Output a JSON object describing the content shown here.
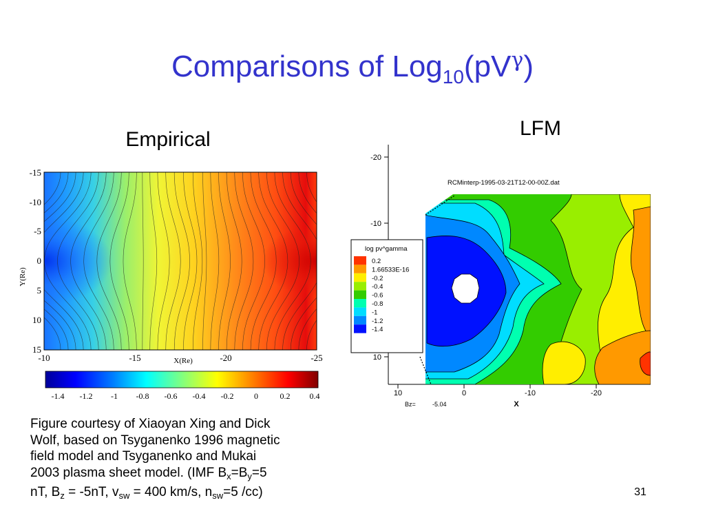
{
  "title": {
    "prefix": "Comparisons of Log",
    "subscript": "10",
    "mid": "(pV",
    "greek": "γ",
    "suffix": ")"
  },
  "panels": {
    "empirical": {
      "heading": "Empirical"
    },
    "lfm": {
      "heading": "LFM"
    }
  },
  "caption": {
    "line1": "Figure courtesy of Xiaoyan Xing and Dick",
    "line2": "Wolf, based on Tsyganenko 1996 magnetic",
    "line3": "field model and Tsyganenko and Mukai",
    "line4_pre": "2003 plasma sheet model. (IMF B",
    "bx_sub": "x",
    "eq1": "=B",
    "by_sub": "y",
    "eq2": "=5",
    "line5_pre": "nT, B",
    "bz_sub": "z",
    "line5_mid": " = -5nT, v",
    "vsw_sub": "sw",
    "line5_mid2": " = 400 km/s, n",
    "nsw_sub": "sw",
    "line5_end": "=5 /cc)"
  },
  "page_number": "31",
  "chart_data": [
    {
      "type": "heatmap",
      "title": "",
      "xlabel": "X(Re)",
      "ylabel": "Y(Re)",
      "xlim": [
        -10,
        -25
      ],
      "ylim": [
        -15,
        15
      ],
      "x_ticks": [
        "-10",
        "-15",
        "-20",
        "-25"
      ],
      "y_ticks": [
        "-15",
        "-10",
        "-5",
        "0",
        "5",
        "10",
        "15"
      ],
      "colorbar": {
        "ticks": [
          "-1.4",
          "-1.2",
          "-1",
          "-0.8",
          "-0.6",
          "-0.4",
          "-0.2",
          "0",
          "0.2",
          "0.4"
        ],
        "range": [
          -1.5,
          0.4
        ],
        "colormap": "jet"
      }
    },
    {
      "type": "heatmap",
      "file_label": "RCMinterp-1995-03-21T12-00-00Z.dat",
      "xlabel": "X",
      "x_ticks": [
        "10",
        "0",
        "-10",
        "-20"
      ],
      "y_ticks": [
        "-20",
        "-10",
        "10"
      ],
      "bz_label": "Bz=",
      "bz_value": "-5.04",
      "legend_title": "log pv^gamma",
      "legend": [
        {
          "label": "0.2",
          "color": "#ff3300"
        },
        {
          "label": "1.66533E-16",
          "color": "#ff9900"
        },
        {
          "label": "-0.2",
          "color": "#ffee00"
        },
        {
          "label": "-0.4",
          "color": "#99ee00"
        },
        {
          "label": "-0.6",
          "color": "#33cc00"
        },
        {
          "label": "-0.8",
          "color": "#00ffb0"
        },
        {
          "label": "-1",
          "color": "#00ddff"
        },
        {
          "label": "-1.2",
          "color": "#0088ff"
        },
        {
          "label": "-1.4",
          "color": "#0011ff"
        }
      ]
    }
  ]
}
